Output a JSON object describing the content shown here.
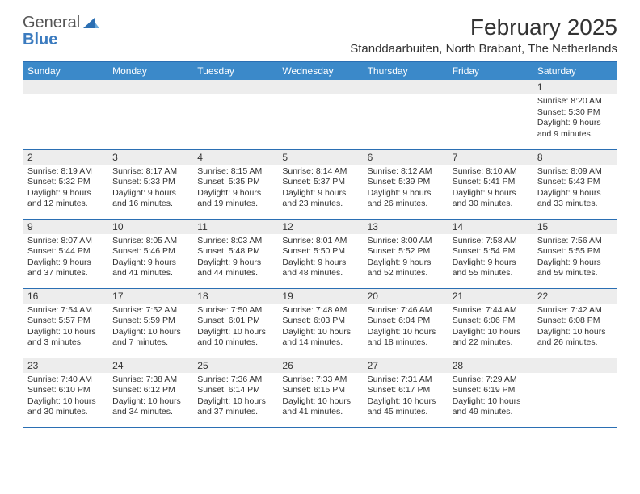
{
  "logo": {
    "line1": "General",
    "line2": "Blue"
  },
  "title": "February 2025",
  "location": "Standdaarbuiten, North Brabant, The Netherlands",
  "colors": {
    "header_blue": "#3b89c9",
    "border_blue": "#2b6fb3",
    "daynum_bg": "#ededed",
    "text": "#333333",
    "logo_gray": "#555555",
    "logo_blue": "#3b7bbf"
  },
  "dayNames": [
    "Sunday",
    "Monday",
    "Tuesday",
    "Wednesday",
    "Thursday",
    "Friday",
    "Saturday"
  ],
  "weeks": [
    [
      null,
      null,
      null,
      null,
      null,
      null,
      {
        "n": "1",
        "sr": "8:20 AM",
        "ss": "5:30 PM",
        "dl": "9 hours and 9 minutes."
      }
    ],
    [
      {
        "n": "2",
        "sr": "8:19 AM",
        "ss": "5:32 PM",
        "dl": "9 hours and 12 minutes."
      },
      {
        "n": "3",
        "sr": "8:17 AM",
        "ss": "5:33 PM",
        "dl": "9 hours and 16 minutes."
      },
      {
        "n": "4",
        "sr": "8:15 AM",
        "ss": "5:35 PM",
        "dl": "9 hours and 19 minutes."
      },
      {
        "n": "5",
        "sr": "8:14 AM",
        "ss": "5:37 PM",
        "dl": "9 hours and 23 minutes."
      },
      {
        "n": "6",
        "sr": "8:12 AM",
        "ss": "5:39 PM",
        "dl": "9 hours and 26 minutes."
      },
      {
        "n": "7",
        "sr": "8:10 AM",
        "ss": "5:41 PM",
        "dl": "9 hours and 30 minutes."
      },
      {
        "n": "8",
        "sr": "8:09 AM",
        "ss": "5:43 PM",
        "dl": "9 hours and 33 minutes."
      }
    ],
    [
      {
        "n": "9",
        "sr": "8:07 AM",
        "ss": "5:44 PM",
        "dl": "9 hours and 37 minutes."
      },
      {
        "n": "10",
        "sr": "8:05 AM",
        "ss": "5:46 PM",
        "dl": "9 hours and 41 minutes."
      },
      {
        "n": "11",
        "sr": "8:03 AM",
        "ss": "5:48 PM",
        "dl": "9 hours and 44 minutes."
      },
      {
        "n": "12",
        "sr": "8:01 AM",
        "ss": "5:50 PM",
        "dl": "9 hours and 48 minutes."
      },
      {
        "n": "13",
        "sr": "8:00 AM",
        "ss": "5:52 PM",
        "dl": "9 hours and 52 minutes."
      },
      {
        "n": "14",
        "sr": "7:58 AM",
        "ss": "5:54 PM",
        "dl": "9 hours and 55 minutes."
      },
      {
        "n": "15",
        "sr": "7:56 AM",
        "ss": "5:55 PM",
        "dl": "9 hours and 59 minutes."
      }
    ],
    [
      {
        "n": "16",
        "sr": "7:54 AM",
        "ss": "5:57 PM",
        "dl": "10 hours and 3 minutes."
      },
      {
        "n": "17",
        "sr": "7:52 AM",
        "ss": "5:59 PM",
        "dl": "10 hours and 7 minutes."
      },
      {
        "n": "18",
        "sr": "7:50 AM",
        "ss": "6:01 PM",
        "dl": "10 hours and 10 minutes."
      },
      {
        "n": "19",
        "sr": "7:48 AM",
        "ss": "6:03 PM",
        "dl": "10 hours and 14 minutes."
      },
      {
        "n": "20",
        "sr": "7:46 AM",
        "ss": "6:04 PM",
        "dl": "10 hours and 18 minutes."
      },
      {
        "n": "21",
        "sr": "7:44 AM",
        "ss": "6:06 PM",
        "dl": "10 hours and 22 minutes."
      },
      {
        "n": "22",
        "sr": "7:42 AM",
        "ss": "6:08 PM",
        "dl": "10 hours and 26 minutes."
      }
    ],
    [
      {
        "n": "23",
        "sr": "7:40 AM",
        "ss": "6:10 PM",
        "dl": "10 hours and 30 minutes."
      },
      {
        "n": "24",
        "sr": "7:38 AM",
        "ss": "6:12 PM",
        "dl": "10 hours and 34 minutes."
      },
      {
        "n": "25",
        "sr": "7:36 AM",
        "ss": "6:14 PM",
        "dl": "10 hours and 37 minutes."
      },
      {
        "n": "26",
        "sr": "7:33 AM",
        "ss": "6:15 PM",
        "dl": "10 hours and 41 minutes."
      },
      {
        "n": "27",
        "sr": "7:31 AM",
        "ss": "6:17 PM",
        "dl": "10 hours and 45 minutes."
      },
      {
        "n": "28",
        "sr": "7:29 AM",
        "ss": "6:19 PM",
        "dl": "10 hours and 49 minutes."
      },
      null
    ]
  ],
  "labels": {
    "sunrise": "Sunrise:",
    "sunset": "Sunset:",
    "daylight": "Daylight:"
  }
}
